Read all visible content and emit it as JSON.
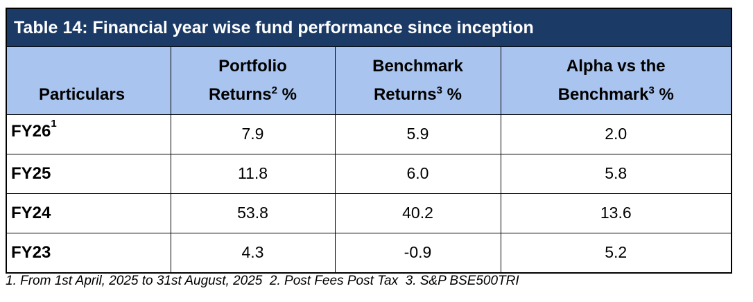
{
  "title": "Table 14: Financial year wise fund performance since inception",
  "columns": {
    "particulars": "Particulars",
    "portfolio_line1": "Portfolio",
    "portfolio_line2": "Returns",
    "portfolio_sup": "2",
    "portfolio_unit": " %",
    "benchmark_line1": "Benchmark",
    "benchmark_line2": "Returns",
    "benchmark_sup": "3",
    "benchmark_unit": " %",
    "alpha_line1": "Alpha vs the",
    "alpha_line2": "Benchmark",
    "alpha_sup": "3",
    "alpha_unit": " %"
  },
  "rows": [
    {
      "label": "FY26",
      "sup": "1",
      "portfolio": "7.9",
      "benchmark": "5.9",
      "alpha": "2.0"
    },
    {
      "label": "FY25",
      "sup": "",
      "portfolio": "11.8",
      "benchmark": "6.0",
      "alpha": "5.8"
    },
    {
      "label": "FY24",
      "sup": "",
      "portfolio": "53.8",
      "benchmark": "40.2",
      "alpha": "13.6"
    },
    {
      "label": "FY23",
      "sup": "",
      "portfolio": "4.3",
      "benchmark": "-0.9",
      "alpha": "5.2"
    }
  ],
  "footnote": "1. From 1st April, 2025 to 31st August, 2025  2. Post Fees Post Tax  3. S&P BSE500TRI",
  "colors": {
    "title_bg": "#1b3a66",
    "header_bg": "#a9c4ee",
    "title_text": "#ffffff"
  }
}
